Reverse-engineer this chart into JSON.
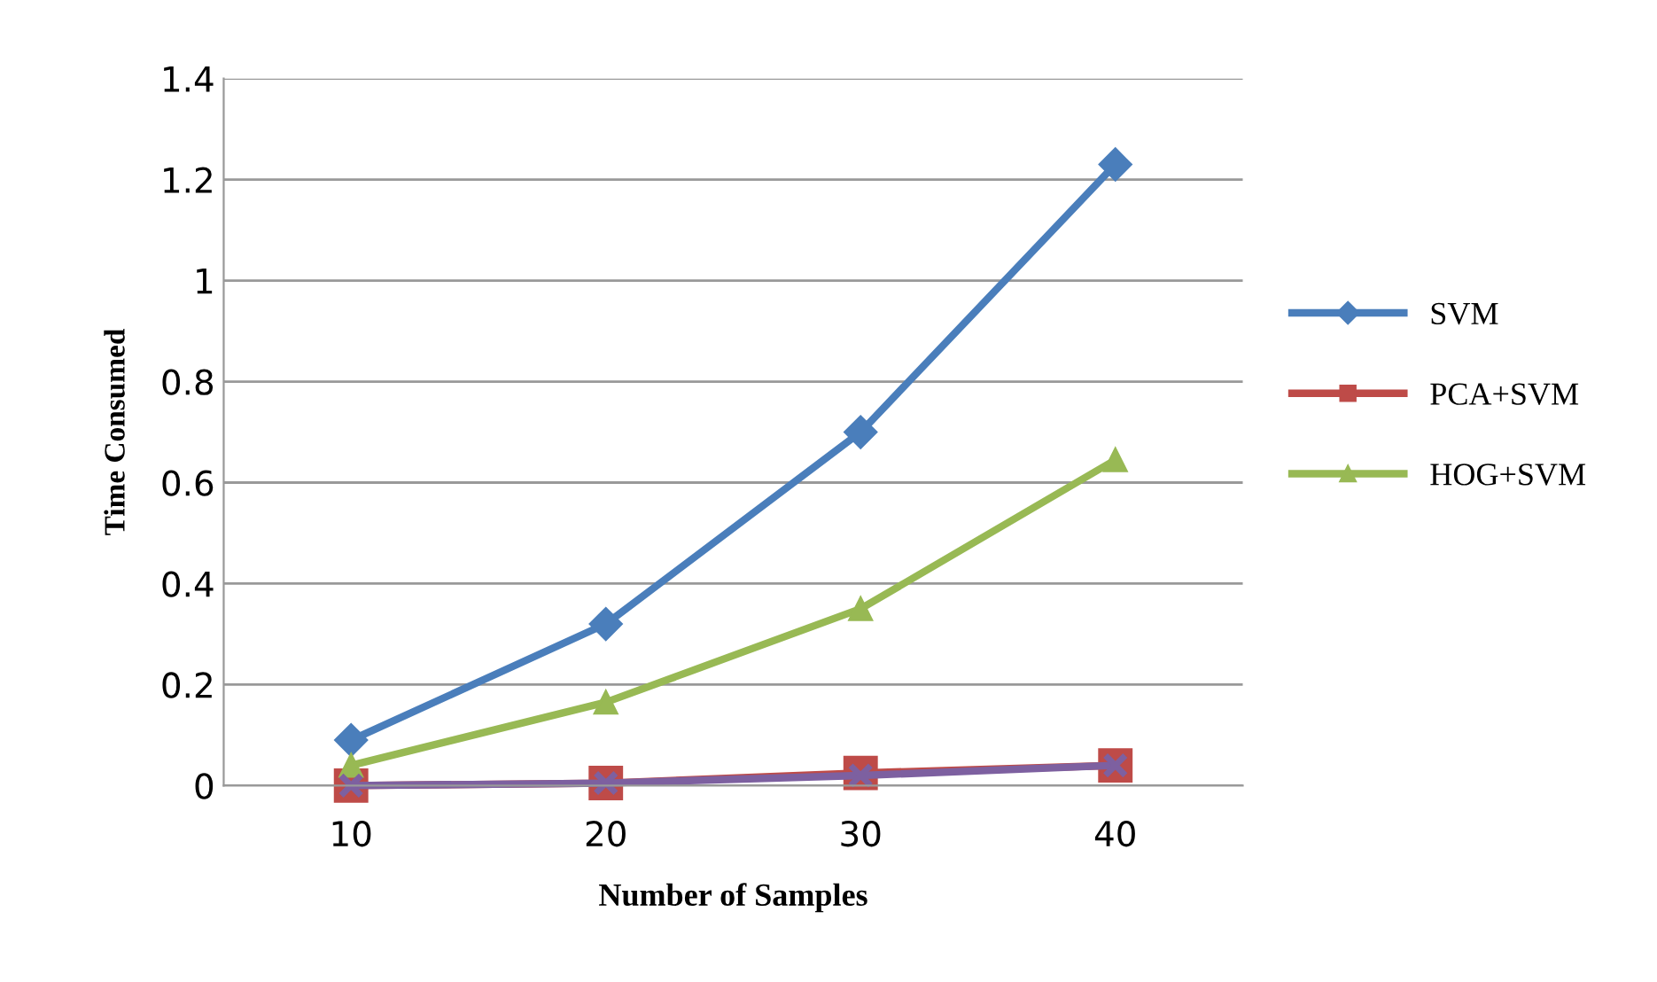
{
  "chart_data": {
    "type": "line",
    "xlabel": "Number of Samples",
    "ylabel": "Time Consumed",
    "categories": [
      "10",
      "20",
      "30",
      "40"
    ],
    "series": [
      {
        "name": "SVM",
        "color": "#4a7ebb",
        "marker": "diamond",
        "values": [
          0.09,
          0.32,
          0.7,
          1.23
        ]
      },
      {
        "name": "PCA+SVM",
        "color": "#be4b48",
        "marker": "square",
        "values": [
          0.0,
          0.005,
          0.025,
          0.04
        ]
      },
      {
        "name": "HOG+SVM",
        "color": "#98b954",
        "marker": "triangle",
        "values": [
          0.04,
          0.165,
          0.35,
          0.645
        ]
      },
      {
        "color": "#7d60a0",
        "marker": "cross",
        "values": [
          0.0,
          0.005,
          0.02,
          0.04
        ]
      }
    ],
    "ylim": [
      0,
      1.4
    ],
    "yticks": [
      0,
      0.2,
      0.4,
      0.6,
      0.8,
      1,
      1.2,
      1.4
    ],
    "grid": "y",
    "legend": "right"
  }
}
